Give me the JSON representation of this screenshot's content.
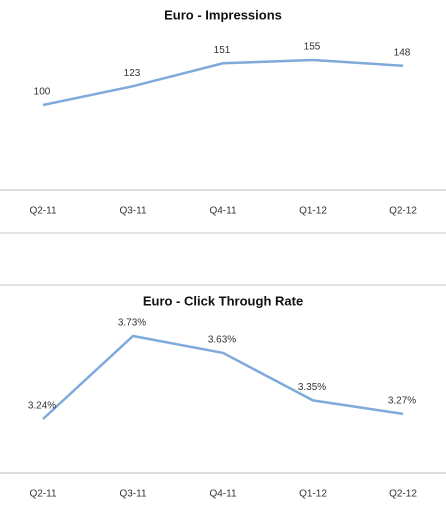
{
  "chart_data": [
    {
      "type": "line",
      "title": "Euro - Impressions",
      "categories": [
        "Q2-11",
        "Q3-11",
        "Q4-11",
        "Q1-12",
        "Q2-12"
      ],
      "values": [
        100,
        123,
        151,
        155,
        148
      ],
      "color": "#7faadb"
    },
    {
      "type": "line",
      "title": "Euro - Click Through Rate",
      "categories": [
        "Q2-11",
        "Q3-11",
        "Q4-11",
        "Q1-12",
        "Q2-12"
      ],
      "values": [
        3.24,
        3.73,
        3.63,
        3.35,
        3.27
      ],
      "value_labels": [
        "3.24%",
        "3.73%",
        "3.63%",
        "3.35%",
        "3.27%"
      ],
      "color": "#7faadb"
    }
  ]
}
